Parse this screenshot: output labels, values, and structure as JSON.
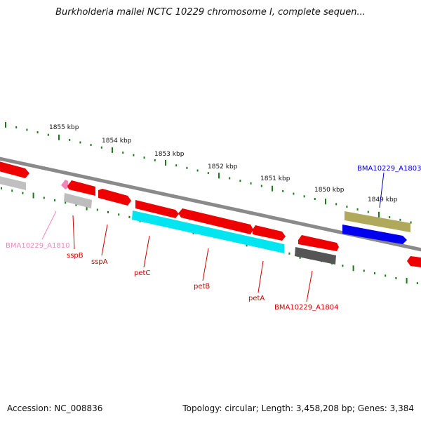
{
  "title": "Burkholderia mallei NCTC 10229 chromosome I, complete sequen...",
  "footer": {
    "accession": "Accession: NC_008836",
    "stats": "Topology: circular; Length: 3,458,208 bp; Genes: 3,384"
  },
  "scale_labels": [
    "1855 kbp",
    "1854 kbp",
    "1853 kbp",
    "1852 kbp",
    "1851 kbp",
    "1850 kbp",
    "1849 kbp"
  ],
  "gene_labels": [
    {
      "text": "BMA10229_A1803",
      "color": "#0000cc"
    },
    {
      "text": "BMA10229_A1810",
      "color": "#ee88bb"
    },
    {
      "text": "sspB",
      "color": "#cc0000"
    },
    {
      "text": "sspA",
      "color": "#cc0000"
    },
    {
      "text": "petC",
      "color": "#cc0000"
    },
    {
      "text": "petB",
      "color": "#cc0000"
    },
    {
      "text": "petA",
      "color": "#cc0000"
    },
    {
      "text": "BMA10229_A1804",
      "color": "#cc0000"
    }
  ],
  "colors": {
    "forward_gene": "#ee0000",
    "cyan_gene": "#00e5f0",
    "blue_gene": "#0000ee",
    "olive_gene": "#b0a85a",
    "gray_gene": "#bbbbbb",
    "dark_gene": "#555555",
    "pink_gene": "#ee88bb",
    "backbone": "#888888",
    "tick": "#1a7a1a"
  }
}
